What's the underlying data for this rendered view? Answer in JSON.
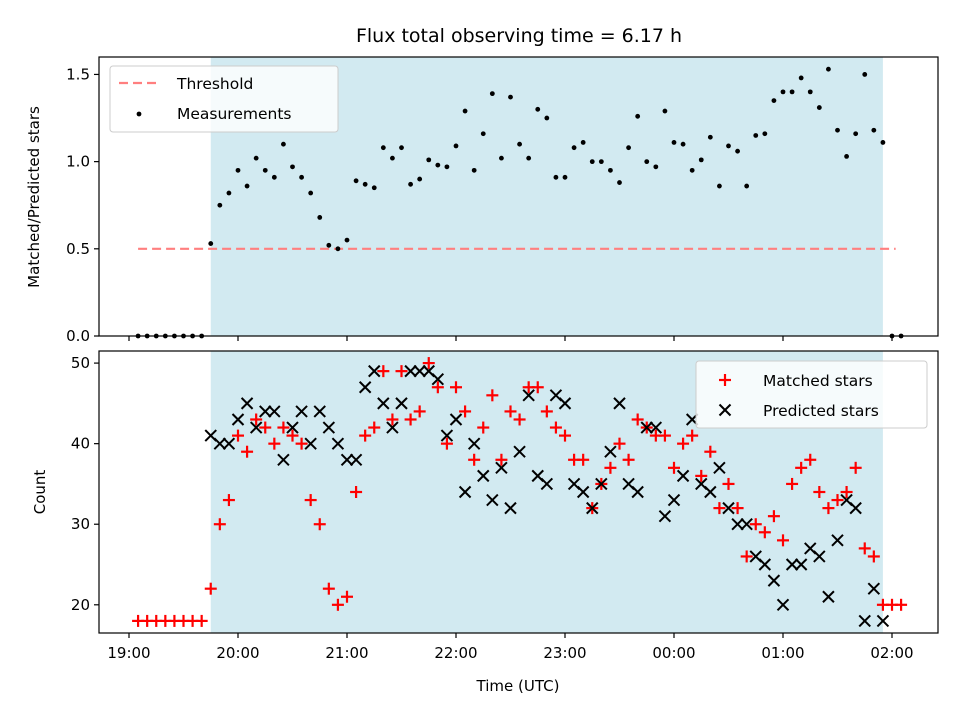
{
  "chart_data": [
    {
      "type": "scatter",
      "title": "Flux total observing time = 6.17 h",
      "ylabel": "Matched/Predicted stars",
      "xlabel": "",
      "ylim": [
        0,
        1.6
      ],
      "yticks": [
        0.0,
        0.5,
        1.0,
        1.5
      ],
      "ytick_labels": [
        "0.0",
        "0.5",
        "1.0",
        "1.5"
      ],
      "shaded_span": [
        "19:45",
        "01:55"
      ],
      "shade_color": "#add8e6",
      "legend_position": "upper-left",
      "threshold": {
        "name": "Threshold",
        "value": 0.5,
        "x_start": "19:05",
        "x_end": "02:02",
        "color": "#ff7f7f"
      },
      "series": [
        {
          "name": "Measurements",
          "color": "#000000",
          "marker": "dot",
          "x": [
            "19:05",
            "19:10",
            "19:15",
            "19:20",
            "19:25",
            "19:30",
            "19:35",
            "19:40",
            "19:45",
            "19:50",
            "19:55",
            "20:00",
            "20:05",
            "20:10",
            "20:15",
            "20:20",
            "20:25",
            "20:30",
            "20:35",
            "20:40",
            "20:45",
            "20:50",
            "20:55",
            "21:00",
            "21:05",
            "21:10",
            "21:15",
            "21:20",
            "21:25",
            "21:30",
            "21:35",
            "21:40",
            "21:45",
            "21:50",
            "21:55",
            "22:00",
            "22:05",
            "22:10",
            "22:15",
            "22:20",
            "22:25",
            "22:30",
            "22:35",
            "22:40",
            "22:45",
            "22:50",
            "22:55",
            "23:00",
            "23:05",
            "23:10",
            "23:15",
            "23:20",
            "23:25",
            "23:30",
            "23:35",
            "23:40",
            "23:45",
            "23:50",
            "23:55",
            "00:00",
            "00:05",
            "00:10",
            "00:15",
            "00:20",
            "00:25",
            "00:30",
            "00:35",
            "00:40",
            "00:45",
            "00:50",
            "00:55",
            "01:00",
            "01:05",
            "01:10",
            "01:15",
            "01:20",
            "01:25",
            "01:30",
            "01:35",
            "01:40",
            "01:45",
            "01:50",
            "01:55",
            "02:00",
            "02:05"
          ],
          "y": [
            0,
            0,
            0,
            0,
            0,
            0,
            0,
            0,
            0.53,
            0.75,
            0.82,
            0.95,
            0.86,
            1.02,
            0.95,
            0.91,
            1.1,
            0.97,
            0.91,
            0.82,
            0.68,
            0.52,
            0.5,
            0.55,
            0.89,
            0.87,
            0.85,
            1.08,
            1.02,
            1.08,
            0.87,
            0.9,
            1.01,
            0.98,
            0.97,
            1.09,
            1.29,
            0.95,
            1.16,
            1.39,
            1.02,
            1.37,
            1.1,
            1.02,
            1.3,
            1.25,
            0.91,
            0.91,
            1.08,
            1.11,
            1.0,
            1.0,
            0.95,
            0.88,
            1.08,
            1.26,
            1.0,
            0.97,
            1.29,
            1.11,
            1.1,
            0.95,
            1.01,
            1.14,
            0.86,
            1.09,
            1.06,
            0.86,
            1.15,
            1.16,
            1.35,
            1.4,
            1.4,
            1.48,
            1.4,
            1.31,
            1.53,
            1.18,
            1.03,
            1.16,
            1.5,
            1.18,
            1.11,
            0,
            0
          ]
        }
      ]
    },
    {
      "type": "scatter",
      "xlabel": "Time (UTC)",
      "ylabel": "Count",
      "ylim": [
        16.5,
        51.5
      ],
      "yticks": [
        20,
        30,
        40,
        50
      ],
      "ytick_labels": [
        "20",
        "30",
        "40",
        "50"
      ],
      "xticks": [
        "19:00",
        "20:00",
        "21:00",
        "22:00",
        "23:00",
        "00:00",
        "01:00",
        "02:00"
      ],
      "xtick_labels": [
        "19:00",
        "20:00",
        "21:00",
        "22:00",
        "23:00",
        "00:00",
        "01:00",
        "02:00"
      ],
      "shaded_span": [
        "19:45",
        "01:55"
      ],
      "legend_position": "upper-right",
      "series": [
        {
          "name": "Matched stars",
          "color": "#ff0000",
          "marker": "plus",
          "x": [
            "19:05",
            "19:10",
            "19:15",
            "19:20",
            "19:25",
            "19:30",
            "19:35",
            "19:40",
            "19:45",
            "19:50",
            "19:55",
            "20:00",
            "20:05",
            "20:10",
            "20:15",
            "20:20",
            "20:25",
            "20:30",
            "20:35",
            "20:40",
            "20:45",
            "20:50",
            "20:55",
            "21:00",
            "21:05",
            "21:10",
            "21:15",
            "21:20",
            "21:25",
            "21:30",
            "21:35",
            "21:40",
            "21:45",
            "21:50",
            "21:55",
            "22:00",
            "22:05",
            "22:10",
            "22:15",
            "22:20",
            "22:25",
            "22:30",
            "22:35",
            "22:40",
            "22:45",
            "22:50",
            "22:55",
            "23:00",
            "23:05",
            "23:10",
            "23:15",
            "23:20",
            "23:25",
            "23:30",
            "23:35",
            "23:40",
            "23:45",
            "23:50",
            "23:55",
            "00:00",
            "00:05",
            "00:10",
            "00:15",
            "00:20",
            "00:25",
            "00:30",
            "00:35",
            "00:40",
            "00:45",
            "00:50",
            "00:55",
            "01:00",
            "01:05",
            "01:10",
            "01:15",
            "01:20",
            "01:25",
            "01:30",
            "01:35",
            "01:40",
            "01:45",
            "01:50",
            "01:55",
            "02:00",
            "02:05"
          ],
          "y": [
            18,
            18,
            18,
            18,
            18,
            18,
            18,
            18,
            22,
            30,
            33,
            41,
            39,
            43,
            42,
            40,
            42,
            41,
            40,
            33,
            30,
            22,
            20,
            21,
            34,
            41,
            42,
            49,
            43,
            49,
            43,
            44,
            50,
            47,
            40,
            47,
            44,
            38,
            42,
            46,
            38,
            44,
            43,
            47,
            47,
            44,
            42,
            41,
            38,
            38,
            32,
            35,
            37,
            40,
            38,
            43,
            42,
            41,
            41,
            37,
            40,
            41,
            36,
            39,
            32,
            35,
            32,
            26,
            30,
            29,
            31,
            28,
            35,
            37,
            38,
            34,
            32,
            33,
            34,
            37,
            27,
            26,
            20,
            20,
            20
          ]
        },
        {
          "name": "Predicted stars",
          "color": "#000000",
          "marker": "x",
          "x": [
            "19:45",
            "19:50",
            "19:55",
            "20:00",
            "20:05",
            "20:10",
            "20:15",
            "20:20",
            "20:25",
            "20:30",
            "20:35",
            "20:40",
            "20:45",
            "20:50",
            "20:55",
            "21:00",
            "21:05",
            "21:10",
            "21:15",
            "21:20",
            "21:25",
            "21:30",
            "21:35",
            "21:40",
            "21:45",
            "21:50",
            "21:55",
            "22:00",
            "22:05",
            "22:10",
            "22:15",
            "22:20",
            "22:25",
            "22:30",
            "22:35",
            "22:40",
            "22:45",
            "22:50",
            "22:55",
            "23:00",
            "23:05",
            "23:10",
            "23:15",
            "23:20",
            "23:25",
            "23:30",
            "23:35",
            "23:40",
            "23:45",
            "23:50",
            "23:55",
            "00:00",
            "00:05",
            "00:10",
            "00:15",
            "00:20",
            "00:25",
            "00:30",
            "00:35",
            "00:40",
            "00:45",
            "00:50",
            "00:55",
            "01:00",
            "01:05",
            "01:10",
            "01:15",
            "01:20",
            "01:25",
            "01:30",
            "01:35",
            "01:40",
            "01:45",
            "01:50",
            "01:55"
          ],
          "y": [
            41,
            40,
            40,
            43,
            45,
            42,
            44,
            44,
            38,
            42,
            44,
            40,
            44,
            42,
            40,
            38,
            38,
            47,
            49,
            45,
            42,
            45,
            49,
            49,
            49,
            48,
            41,
            43,
            34,
            40,
            36,
            33,
            37,
            32,
            39,
            46,
            36,
            35,
            46,
            45,
            35,
            34,
            32,
            35,
            39,
            45,
            35,
            34,
            42,
            42,
            31,
            33,
            36,
            43,
            35,
            34,
            37,
            32,
            30,
            30,
            26,
            25,
            23,
            20,
            25,
            25,
            27,
            26,
            21,
            28,
            33,
            32,
            18,
            22,
            18
          ]
        }
      ]
    }
  ]
}
